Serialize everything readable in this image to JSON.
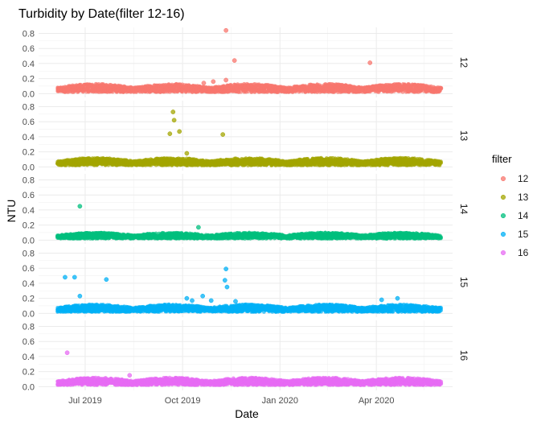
{
  "chart_data": {
    "type": "scatter",
    "title": "Turbidity by Date(filter 12-16)",
    "xlabel": "Date",
    "ylabel": "NTU",
    "xlim": [
      "2019-05-18",
      "2020-06-12"
    ],
    "x_ticks": [
      {
        "date": "2019-07-01",
        "label": "Jul 2019"
      },
      {
        "date": "2019-10-01",
        "label": "Oct 2019"
      },
      {
        "date": "2020-01-01",
        "label": "Jan 2020"
      },
      {
        "date": "2020-04-01",
        "label": "Apr 2020"
      }
    ],
    "ylim": [
      -0.05,
      0.88
    ],
    "y_ticks": [
      "0.0",
      "0.2",
      "0.4",
      "0.6",
      "0.8"
    ],
    "y_tick_values": [
      0,
      0.2,
      0.4,
      0.6,
      0.8
    ],
    "grid": true,
    "legend": {
      "title": "filter",
      "placement": "right"
    },
    "data_range": [
      "2019-06-05",
      "2020-06-01"
    ],
    "series": [
      {
        "name": "12",
        "color": "#F8766D",
        "baseline": [
          0.02,
          0.13
        ],
        "outliers": [
          {
            "x": "2019-10-21",
            "y": 0.14
          },
          {
            "x": "2019-10-30",
            "y": 0.16
          },
          {
            "x": "2019-11-11",
            "y": 0.84
          },
          {
            "x": "2019-11-11",
            "y": 0.18
          },
          {
            "x": "2019-11-19",
            "y": 0.44
          },
          {
            "x": "2020-03-26",
            "y": 0.41
          }
        ]
      },
      {
        "name": "13",
        "color": "#A3A500",
        "baseline": [
          0.02,
          0.12
        ],
        "outliers": [
          {
            "x": "2019-09-19",
            "y": 0.44
          },
          {
            "x": "2019-09-22",
            "y": 0.73
          },
          {
            "x": "2019-09-23",
            "y": 0.62
          },
          {
            "x": "2019-09-28",
            "y": 0.47
          },
          {
            "x": "2019-10-05",
            "y": 0.18
          },
          {
            "x": "2019-11-08",
            "y": 0.43
          }
        ]
      },
      {
        "name": "14",
        "color": "#00BF7D",
        "baseline": [
          0.02,
          0.1
        ],
        "outliers": [
          {
            "x": "2019-06-26",
            "y": 0.45
          },
          {
            "x": "2019-10-16",
            "y": 0.17
          },
          {
            "x": "2019-10-17",
            "y": 0.06
          }
        ]
      },
      {
        "name": "15",
        "color": "#00B0F6",
        "baseline": [
          0.02,
          0.12
        ],
        "outliers": [
          {
            "x": "2019-06-12",
            "y": 0.48
          },
          {
            "x": "2019-06-21",
            "y": 0.48
          },
          {
            "x": "2019-06-26",
            "y": 0.23
          },
          {
            "x": "2019-07-21",
            "y": 0.45
          },
          {
            "x": "2019-11-10",
            "y": 0.44
          },
          {
            "x": "2019-11-11",
            "y": 0.59
          },
          {
            "x": "2019-11-12",
            "y": 0.35
          },
          {
            "x": "2019-10-20",
            "y": 0.23
          },
          {
            "x": "2019-10-05",
            "y": 0.2
          },
          {
            "x": "2019-10-10",
            "y": 0.17
          },
          {
            "x": "2019-10-28",
            "y": 0.17
          },
          {
            "x": "2019-11-20",
            "y": 0.16
          },
          {
            "x": "2020-04-06",
            "y": 0.18
          },
          {
            "x": "2020-04-21",
            "y": 0.2
          }
        ]
      },
      {
        "name": "16",
        "color": "#E76BF3",
        "baseline": [
          0.02,
          0.12
        ],
        "outliers": [
          {
            "x": "2019-06-14",
            "y": 0.45
          },
          {
            "x": "2019-08-12",
            "y": 0.15
          }
        ]
      }
    ]
  }
}
